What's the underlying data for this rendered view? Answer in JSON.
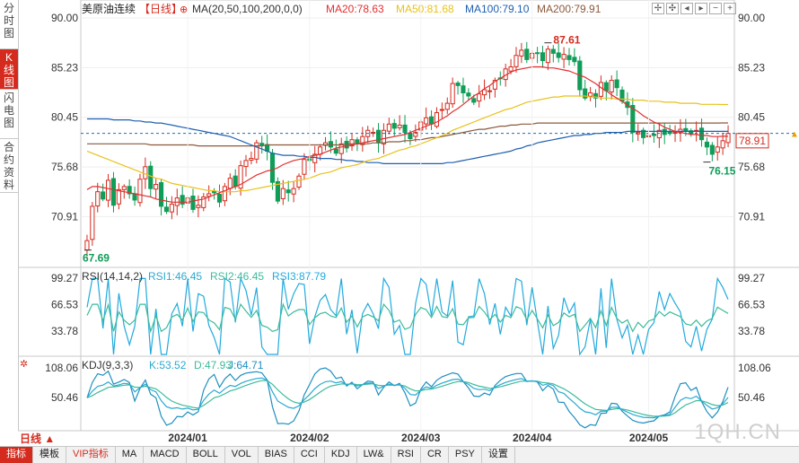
{
  "side_tabs": [
    {
      "label": "分时图",
      "active": false
    },
    {
      "label": "K线图",
      "active": true
    },
    {
      "label": "闪电图",
      "active": false
    },
    {
      "label": "合约资料",
      "active": false
    }
  ],
  "toolbar_icons": [
    "expand-icon",
    "shrink-icon",
    "move-left-icon",
    "move-right-icon",
    "zoom-out-icon",
    "zoom-in-icon"
  ],
  "bottom_tabs": [
    "指标",
    "模板",
    "VIP指标",
    "MA",
    "MACD",
    "BOLL",
    "VOL",
    "BIAS",
    "CCI",
    "KDJ",
    "LW&",
    "RSI",
    "CR",
    "PSY",
    "设置"
  ],
  "period_label": "日线 ▲",
  "watermark": "1QH.CN",
  "colors": {
    "up": "#d52b1e",
    "down": "#0f9d58",
    "ma20": "#e23030",
    "ma50": "#e8c21a",
    "ma100": "#1f5fb0",
    "ma200": "#8b5a3c",
    "rsi1": "#2ba9cf",
    "rsi2": "#3dbb9b",
    "rsi3": "#22aadd",
    "kdj_k": "#2ba9cf",
    "kdj_d": "#3dbb9b",
    "kdj_j": "#1e8fbf"
  },
  "chart_data": [
    {
      "type": "candlestick",
      "title": "美原油连续",
      "period": "【日线】",
      "legend": [
        {
          "label": "MA(20,50,100,200,0,0)",
          "color": "#333333"
        },
        {
          "label": "MA20:78.63",
          "color": "#e23030"
        },
        {
          "label": "MA50:81.68",
          "color": "#e8c21a"
        },
        {
          "label": "MA100:79.10",
          "color": "#1f5fb0"
        },
        {
          "label": "MA200:79.91",
          "color": "#8b5a3c"
        }
      ],
      "y_ticks": [
        "90.00",
        "85.23",
        "80.45",
        "75.68",
        "70.91"
      ],
      "ylim": [
        66.2,
        90.0
      ],
      "x_labels": [
        {
          "label": "2024/01",
          "index": 19
        },
        {
          "label": "2024/02",
          "index": 42
        },
        {
          "label": "2024/03",
          "index": 63
        },
        {
          "label": "2024/04",
          "index": 84
        },
        {
          "label": "2024/05",
          "index": 106
        }
      ],
      "last_price": "78.91",
      "last_price_value": 78.91,
      "annotations": {
        "high": {
          "label": "87.61",
          "value": 87.61,
          "index": 87
        },
        "low": {
          "label": "67.69",
          "value": 67.69,
          "index": 0
        },
        "recent_low": {
          "label": "76.15",
          "value": 76.15,
          "index": 117
        }
      },
      "closes": [
        68.6,
        71.9,
        73.3,
        72.6,
        74.4,
        72.0,
        73.5,
        73.8,
        73.1,
        72.5,
        74.5,
        75.7,
        73.6,
        74.0,
        71.9,
        71.4,
        72.1,
        72.7,
        72.1,
        72.7,
        71.6,
        72.0,
        72.8,
        73.1,
        73.2,
        72.3,
        73.8,
        74.6,
        73.8,
        75.8,
        76.3,
        76.5,
        78.0,
        77.8,
        77.2,
        74.2,
        72.4,
        73.6,
        73.2,
        73.6,
        74.8,
        76.4,
        76.3,
        76.9,
        77.6,
        78.0,
        77.6,
        77.0,
        77.9,
        77.5,
        78.3,
        77.9,
        78.6,
        79.2,
        79.0,
        78.0,
        79.2,
        79.8,
        79.4,
        79.7,
        79.0,
        78.4,
        79.0,
        80.0,
        80.4,
        79.8,
        80.9,
        81.2,
        81.8,
        83.7,
        83.5,
        82.8,
        82.5,
        81.9,
        82.7,
        83.1,
        83.0,
        84.0,
        84.2,
        85.1,
        85.3,
        86.4,
        86.9,
        86.0,
        86.6,
        86.6,
        85.9,
        87.0,
        86.6,
        86.2,
        86.5,
        86.0,
        85.8,
        83.1,
        82.3,
        82.8,
        82.3,
        83.8,
        83.0,
        84.0,
        83.3,
        82.0,
        81.4,
        79.0,
        79.0,
        78.5,
        78.7,
        78.7,
        79.2,
        78.8,
        78.9,
        79.0,
        79.3,
        79.1,
        78.9,
        79.2,
        78.3,
        77.6,
        76.9,
        77.6,
        78.2,
        78.9
      ],
      "ma20": [
        73.5,
        73.8,
        73.8,
        73.7,
        73.6,
        73.5,
        73.4,
        73.3,
        73.2,
        73.1,
        73.0,
        72.9,
        72.8,
        72.6,
        72.5,
        72.4,
        72.3,
        72.3,
        72.3,
        72.3,
        72.4,
        72.5,
        72.6,
        72.8,
        73.0,
        73.2,
        73.4,
        73.6,
        73.8,
        74.0,
        74.3,
        74.6,
        74.9,
        75.1,
        75.3,
        75.4,
        75.6,
        75.9,
        76.1,
        76.3,
        76.4,
        76.5,
        76.7,
        76.8,
        76.9,
        77.1,
        77.3,
        77.5,
        77.6,
        77.7,
        77.8,
        77.9,
        78.0,
        78.1,
        78.2,
        78.3,
        78.4,
        78.5,
        78.6,
        78.7,
        78.8,
        79.0,
        79.2,
        79.4,
        79.6,
        79.8,
        80.0,
        80.3,
        80.6,
        81.0,
        81.3,
        81.7,
        82.1,
        82.5,
        82.8,
        83.2,
        83.5,
        83.9,
        84.2,
        84.5,
        84.8,
        85.0,
        85.1,
        85.2,
        85.3,
        85.3,
        85.3,
        85.2,
        85.2,
        85.1,
        85.0,
        84.9,
        84.7,
        84.5,
        84.3,
        84.0,
        83.7,
        83.3,
        83.0,
        82.6,
        82.3,
        82.0,
        81.6,
        81.3,
        81.0,
        80.6,
        80.3,
        80.0,
        79.8,
        79.5,
        79.3,
        79.1,
        79.0,
        78.9,
        78.8,
        78.8,
        78.7,
        78.7,
        78.6,
        78.6,
        78.63,
        78.63
      ],
      "ma50": [
        77.2,
        77.0,
        76.8,
        76.6,
        76.4,
        76.2,
        76.0,
        75.8,
        75.6,
        75.4,
        75.2,
        75.0,
        74.8,
        74.6,
        74.5,
        74.3,
        74.1,
        74.0,
        73.9,
        73.8,
        73.7,
        73.6,
        73.5,
        73.4,
        73.4,
        73.3,
        73.3,
        73.3,
        73.3,
        73.4,
        73.4,
        73.5,
        73.6,
        73.7,
        73.8,
        73.9,
        74.0,
        74.1,
        74.2,
        74.3,
        74.4,
        74.5,
        74.6,
        74.8,
        75.0,
        75.1,
        75.2,
        75.4,
        75.6,
        75.7,
        75.8,
        75.9,
        76.1,
        76.3,
        76.4,
        76.5,
        76.7,
        76.9,
        77.1,
        77.3,
        77.4,
        77.6,
        77.7,
        77.9,
        78.1,
        78.3,
        78.5,
        78.7,
        78.9,
        79.2,
        79.4,
        79.6,
        79.8,
        80.0,
        80.2,
        80.4,
        80.6,
        80.8,
        81.0,
        81.2,
        81.3,
        81.5,
        81.7,
        81.9,
        82.0,
        82.1,
        82.2,
        82.3,
        82.4,
        82.4,
        82.5,
        82.5,
        82.5,
        82.5,
        82.5,
        82.4,
        82.4,
        82.3,
        82.3,
        82.3,
        82.2,
        82.2,
        82.2,
        82.1,
        82.1,
        82.1,
        82.0,
        82.0,
        82.0,
        81.9,
        81.9,
        81.9,
        81.8,
        81.8,
        81.8,
        81.8,
        81.7,
        81.7,
        81.7,
        81.7,
        81.68,
        81.68
      ],
      "ma100": [
        80.3,
        80.3,
        80.3,
        80.3,
        80.3,
        80.2,
        80.2,
        80.2,
        80.2,
        80.1,
        80.1,
        80.0,
        80.0,
        79.9,
        79.9,
        79.8,
        79.7,
        79.6,
        79.5,
        79.4,
        79.3,
        79.2,
        79.1,
        79.0,
        78.9,
        78.8,
        78.7,
        78.6,
        78.4,
        78.2,
        78.0,
        77.8,
        77.6,
        77.4,
        77.2,
        77.0,
        76.9,
        76.8,
        76.8,
        76.8,
        76.7,
        76.7,
        76.6,
        76.6,
        76.5,
        76.5,
        76.5,
        76.4,
        76.4,
        76.3,
        76.3,
        76.2,
        76.2,
        76.1,
        76.1,
        76.1,
        76.0,
        76.0,
        76.0,
        76.0,
        76.0,
        76.0,
        76.0,
        76.0,
        76.0,
        76.0,
        76.0,
        76.0,
        76.1,
        76.1,
        76.2,
        76.3,
        76.4,
        76.5,
        76.6,
        76.7,
        76.8,
        76.9,
        77.0,
        77.1,
        77.2,
        77.4,
        77.5,
        77.7,
        77.8,
        78.0,
        78.1,
        78.2,
        78.3,
        78.4,
        78.5,
        78.6,
        78.7,
        78.7,
        78.8,
        78.8,
        78.9,
        78.9,
        79.0,
        79.0,
        79.0,
        79.0,
        79.1,
        79.1,
        79.1,
        79.1,
        79.1,
        79.1,
        79.1,
        79.1,
        79.1,
        79.1,
        79.1,
        79.1,
        79.1,
        79.1,
        79.1,
        79.1,
        79.1,
        79.1,
        79.1,
        79.1
      ],
      "ma200": [
        77.9,
        77.9,
        77.9,
        77.9,
        77.9,
        77.9,
        77.9,
        77.9,
        77.9,
        77.9,
        77.9,
        77.9,
        77.8,
        77.8,
        77.8,
        77.8,
        77.8,
        77.8,
        77.8,
        77.8,
        77.8,
        77.7,
        77.7,
        77.7,
        77.7,
        77.7,
        77.7,
        77.7,
        77.7,
        77.7,
        77.7,
        77.7,
        77.7,
        77.7,
        77.8,
        77.8,
        77.8,
        77.8,
        77.8,
        77.8,
        77.8,
        77.8,
        77.8,
        77.8,
        77.8,
        77.8,
        77.8,
        77.8,
        77.8,
        77.9,
        77.9,
        77.9,
        77.9,
        77.9,
        78.0,
        78.0,
        78.0,
        78.1,
        78.1,
        78.1,
        78.2,
        78.2,
        78.3,
        78.3,
        78.4,
        78.5,
        78.5,
        78.6,
        78.7,
        78.8,
        78.9,
        79.0,
        79.1,
        79.2,
        79.3,
        79.3,
        79.4,
        79.5,
        79.6,
        79.6,
        79.7,
        79.7,
        79.8,
        79.8,
        79.8,
        79.9,
        79.9,
        79.9,
        79.9,
        79.9,
        79.9,
        79.9,
        79.9,
        79.9,
        79.9,
        79.9,
        79.9,
        79.9,
        79.9,
        79.9,
        79.9,
        79.9,
        79.9,
        79.9,
        79.9,
        79.9,
        79.9,
        79.9,
        79.9,
        79.9,
        79.9,
        79.9,
        79.9,
        79.9,
        79.9,
        79.9,
        79.9,
        79.9,
        79.9,
        79.9,
        79.91,
        79.91
      ]
    },
    {
      "type": "line",
      "title": "RSI(14,14,2)",
      "legend": [
        {
          "label": "RSI(14,14,2)",
          "color": "#333333"
        },
        {
          "label": "RSI1:46.45",
          "color": "#2ba9cf"
        },
        {
          "label": "RSI2:46.45",
          "color": "#3dbb9b"
        },
        {
          "label": "RSI3:87.79",
          "color": "#22aadd"
        }
      ],
      "y_ticks": [
        "99.27",
        "66.53",
        "33.78"
      ],
      "ylim": [
        5,
        105
      ],
      "series": [
        {
          "name": "RSI1",
          "values": [
            46.45,
            46.45
          ],
          "key": "rsi1"
        },
        {
          "name": "RSI3",
          "values": [
            87.79,
            87.79
          ],
          "key": "rsi3"
        }
      ]
    },
    {
      "type": "line",
      "title": "KDJ(9,3,3)",
      "legend": [
        {
          "label": "KDJ(9,3,3)",
          "color": "#333333"
        },
        {
          "label": "K:53.52",
          "color": "#2ba9cf"
        },
        {
          "label": "D:47.93",
          "color": "#3dbb9b"
        },
        {
          "label": "J:64.71",
          "color": "#1e8fbf"
        }
      ],
      "y_ticks": [
        "108.06",
        "50.46"
      ],
      "ylim": [
        -10,
        125
      ]
    }
  ]
}
